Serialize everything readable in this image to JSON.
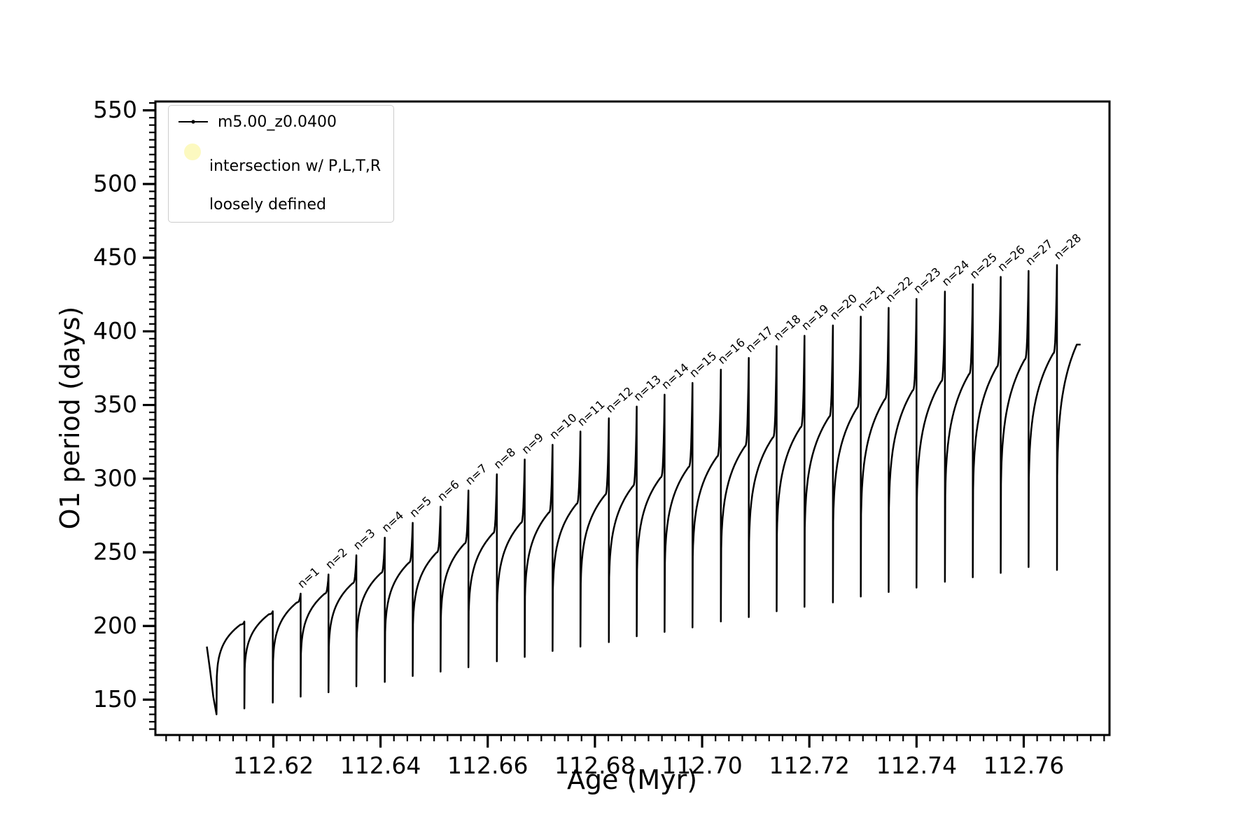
{
  "chart_data": {
    "type": "line",
    "title": "",
    "xlabel": "Age (Myr)",
    "ylabel": "O1 period (days)",
    "xlim": [
      112.598,
      112.776
    ],
    "ylim": [
      126,
      556
    ],
    "xticks": [
      112.62,
      112.64,
      112.66,
      112.68,
      112.7,
      112.72,
      112.74,
      112.76
    ],
    "xtick_labels": [
      "112.62",
      "112.64",
      "112.66",
      "112.68",
      "112.70",
      "112.72",
      "112.74",
      "112.76"
    ],
    "yticks": [
      150,
      200,
      250,
      300,
      350,
      400,
      450,
      500,
      550
    ],
    "ytick_labels": [
      "150",
      "200",
      "250",
      "300",
      "350",
      "400",
      "450",
      "500",
      "550"
    ],
    "x_minor_step": 0.0025,
    "y_minor_step": 5,
    "grid": false,
    "line_color": "#000000",
    "marker_color": "#000000",
    "legend_position": "upper-left",
    "legend": {
      "entry1": {
        "label": "m5.00_z0.0400",
        "marker": "line-with-dot",
        "color": "#000000"
      },
      "entry2": {
        "line1": "intersection w/ P,L,T,R",
        "line2": "loosely defined",
        "marker": "pale-yellow-circle",
        "color": "#fcf8b9"
      }
    },
    "series_name": "m5.00_z0.0400",
    "lead_in": [
      [
        112.6076,
        186
      ],
      [
        112.6082,
        170
      ],
      [
        112.6088,
        152
      ]
    ],
    "cycle_fields": [
      "x_start",
      "x_end",
      "y_min",
      "y_plateau",
      "y_spike_peak",
      "spike_label"
    ],
    "cycles": [
      [
        112.6094,
        112.6146,
        140,
        201,
        203,
        null
      ],
      [
        112.6146,
        112.6199,
        144,
        208,
        210,
        null
      ],
      [
        112.6199,
        112.6251,
        148,
        216,
        222,
        "n=1"
      ],
      [
        112.6251,
        112.6303,
        152,
        222,
        235,
        "n=2"
      ],
      [
        112.6303,
        112.6355,
        155,
        229,
        248,
        "n=3"
      ],
      [
        112.6355,
        112.6408,
        159,
        236,
        260,
        "n=4"
      ],
      [
        112.6408,
        112.646,
        162,
        243,
        270,
        "n=5"
      ],
      [
        112.646,
        112.6512,
        166,
        250,
        281,
        "n=6"
      ],
      [
        112.6512,
        112.6564,
        169,
        256,
        292,
        "n=7"
      ],
      [
        112.6564,
        112.6617,
        172,
        263,
        303,
        "n=8"
      ],
      [
        112.6617,
        112.6669,
        176,
        270,
        313,
        "n=9"
      ],
      [
        112.6669,
        112.6721,
        179,
        277,
        323,
        "n=10"
      ],
      [
        112.6721,
        112.6773,
        183,
        283,
        332,
        "n=11"
      ],
      [
        112.6773,
        112.6826,
        186,
        289,
        341,
        "n=12"
      ],
      [
        112.6826,
        112.6878,
        189,
        295,
        349,
        "n=13"
      ],
      [
        112.6878,
        112.693,
        193,
        301,
        357,
        "n=14"
      ],
      [
        112.693,
        112.6982,
        196,
        308,
        365,
        "n=15"
      ],
      [
        112.6982,
        112.7035,
        199,
        315,
        374,
        "n=16"
      ],
      [
        112.7035,
        112.7087,
        203,
        322,
        382,
        "n=17"
      ],
      [
        112.7087,
        112.7139,
        206,
        328,
        390,
        "n=18"
      ],
      [
        112.7139,
        112.7191,
        210,
        335,
        397,
        "n=19"
      ],
      [
        112.7191,
        112.7244,
        213,
        342,
        404,
        "n=20"
      ],
      [
        112.7244,
        112.7296,
        216,
        348,
        410,
        "n=21"
      ],
      [
        112.7296,
        112.7348,
        220,
        354,
        416,
        "n=22"
      ],
      [
        112.7348,
        112.74,
        223,
        360,
        422,
        "n=23"
      ],
      [
        112.74,
        112.7453,
        226,
        366,
        427,
        "n=24"
      ],
      [
        112.7453,
        112.7505,
        230,
        371,
        432,
        "n=25"
      ],
      [
        112.7505,
        112.7557,
        233,
        376,
        437,
        "n=26"
      ],
      [
        112.7557,
        112.7609,
        236,
        381,
        441,
        "n=27"
      ],
      [
        112.7609,
        112.7662,
        240,
        385,
        445,
        "n=28"
      ],
      [
        112.7662,
        112.7706,
        238,
        391,
        391,
        null
      ]
    ],
    "annotation_labels": [
      "n=1",
      "n=2",
      "n=3",
      "n=4",
      "n=5",
      "n=6",
      "n=7",
      "n=8",
      "n=9",
      "n=10",
      "n=11",
      "n=12",
      "n=13",
      "n=14",
      "n=15",
      "n=16",
      "n=17",
      "n=18",
      "n=19",
      "n=20",
      "n=21",
      "n=22",
      "n=23",
      "n=24",
      "n=25",
      "n=26",
      "n=27",
      "n=28"
    ]
  }
}
